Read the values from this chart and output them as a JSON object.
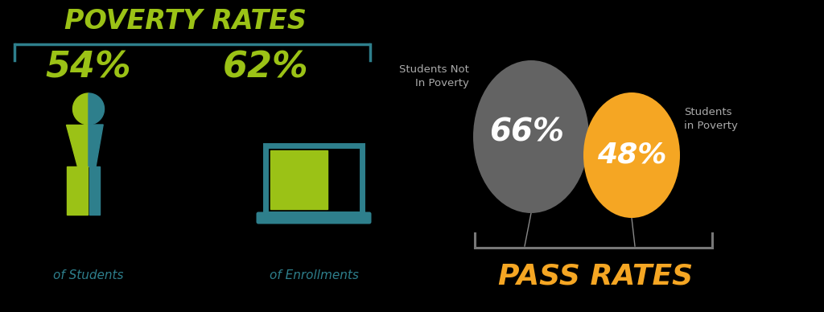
{
  "bg_color": "#000000",
  "lime_green": "#9bc216",
  "teal": "#2e7f8c",
  "dark_gray": "#555555",
  "orange": "#f5a623",
  "white": "#ffffff",
  "label_gray": "#999999",
  "left_title": "POVERTY RATES",
  "pct_54": "54%",
  "pct_62": "62%",
  "label_students": "of Students",
  "label_enrollments": "of Enrollments",
  "right_title": "PASS RATES",
  "pct_66": "66%",
  "pct_48": "48%",
  "label_not_poverty": "Students Not\nIn Poverty",
  "label_poverty": "Students\nin Poverty"
}
